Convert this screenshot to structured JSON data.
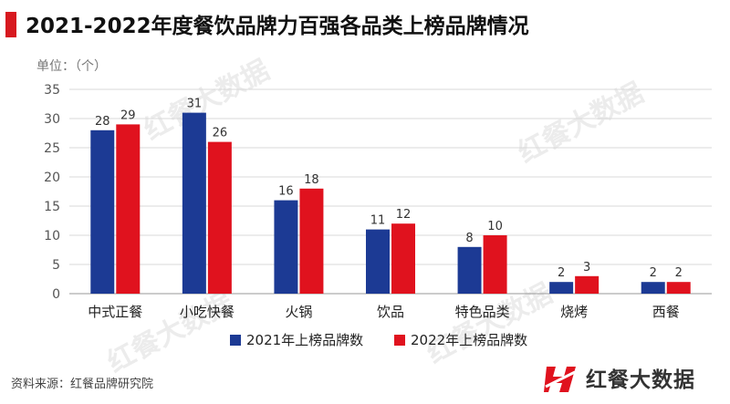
{
  "title": "2021-2022年度餐饮品牌力百强各品类上榜品牌情况",
  "unit_label": "单位：（个）",
  "source": "资料来源：红餐品牌研究院",
  "logo_text": "红餐大数据",
  "watermark_text": "红餐大数据",
  "colors": {
    "series_2021": "#1c3a94",
    "series_2022": "#e0121e",
    "title_accent": "#d7191f"
  },
  "chart_data": {
    "type": "bar",
    "categories": [
      "中式正餐",
      "小吃快餐",
      "火锅",
      "饮品",
      "特色品类",
      "烧烤",
      "西餐"
    ],
    "series": [
      {
        "name": "2021年上榜品牌数",
        "values": [
          28,
          31,
          16,
          11,
          8,
          2,
          2
        ]
      },
      {
        "name": "2022年上榜品牌数",
        "values": [
          29,
          26,
          18,
          12,
          10,
          3,
          2
        ]
      }
    ],
    "ylim": [
      0,
      35
    ],
    "yticks": [
      0,
      5,
      10,
      15,
      20,
      25,
      30,
      35
    ],
    "grid": true,
    "legend_position": "bottom-center",
    "data_labels": true
  }
}
